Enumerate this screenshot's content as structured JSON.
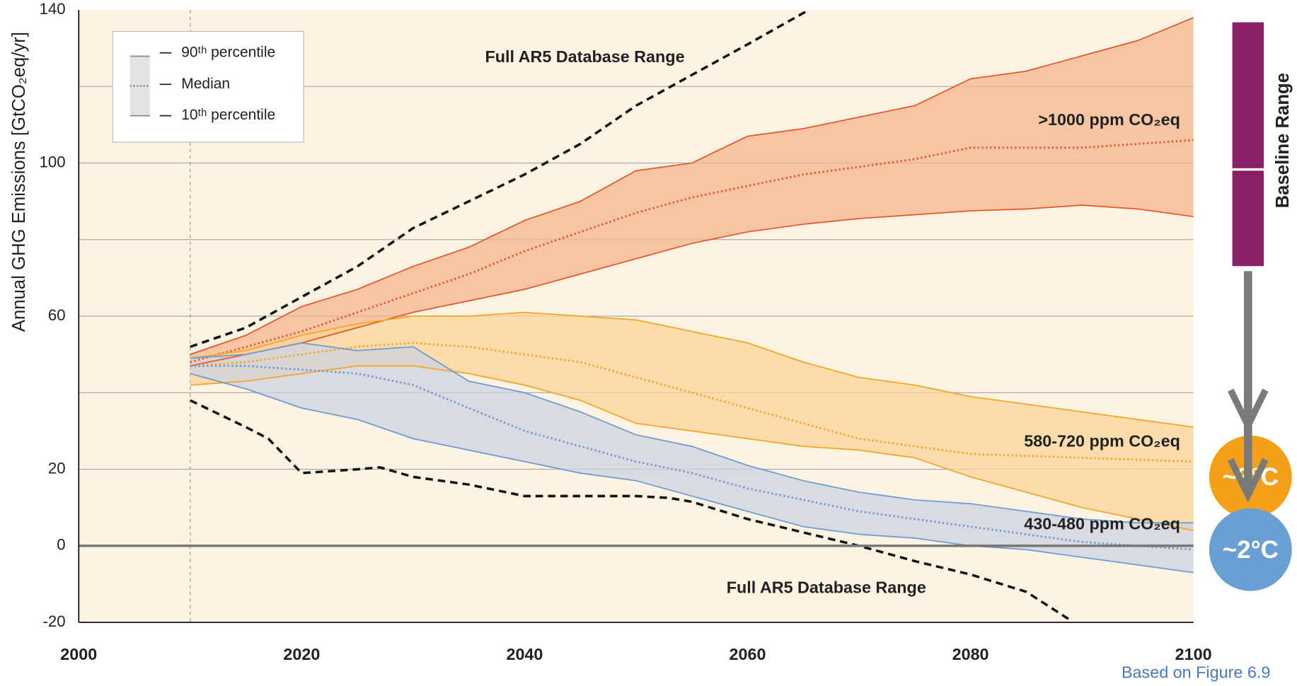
{
  "chart_data": {
    "type": "band-line",
    "y_label": "Annual GHG Emissions [GtCO₂eq/yr]",
    "xlim": [
      2000,
      2100
    ],
    "ylim": [
      -20,
      140
    ],
    "xticks": [
      2000,
      2020,
      2040,
      2060,
      2080,
      2100
    ],
    "yticks": [
      -20,
      0,
      20,
      60,
      100,
      140
    ],
    "minor_grid": [
      40,
      80,
      120
    ],
    "reference_x": 2010,
    "legend": {
      "items": [
        "90ᵗʰ percentile",
        "Median",
        "10ᵗʰ percentile"
      ],
      "position": "upper left"
    },
    "x": [
      2010,
      2015,
      2020,
      2025,
      2030,
      2035,
      2040,
      2045,
      2050,
      2055,
      2060,
      2065,
      2070,
      2075,
      2080,
      2085,
      2090,
      2095,
      2100
    ],
    "scenarios": [
      {
        "name": ">1000 ppm CO₂eq",
        "color": "#e8562a",
        "band_color": "#f3b58e",
        "p90": [
          50,
          55,
          62.5,
          67,
          73,
          78,
          85,
          90,
          98,
          100,
          107,
          109,
          112,
          115,
          122,
          124,
          128,
          132,
          138
        ],
        "median": [
          48,
          52,
          56,
          61,
          66,
          71,
          77,
          82,
          87,
          91,
          94,
          97,
          99,
          101,
          104,
          104,
          104,
          105,
          106
        ],
        "p10": [
          47,
          50,
          53,
          57,
          61,
          64,
          67,
          71,
          75,
          79,
          82,
          84,
          85.5,
          86.5,
          87.5,
          88,
          89,
          88,
          86
        ]
      },
      {
        "name": "580-720 ppm CO₂eq",
        "color": "#f5a623",
        "band_color": "#fbd49a",
        "p90": [
          49,
          51,
          55,
          58,
          60,
          60,
          61,
          60,
          59,
          56,
          53,
          48,
          44,
          42,
          39,
          37,
          35,
          33,
          31
        ],
        "median": [
          47,
          48,
          50,
          52,
          53,
          52,
          50,
          48,
          44,
          40,
          36,
          32,
          28,
          26,
          24,
          23.5,
          23,
          22.5,
          22
        ],
        "p10": [
          42,
          43,
          45,
          47,
          47,
          45,
          42,
          38,
          32,
          30,
          28,
          26,
          25,
          23,
          18,
          14,
          10,
          7,
          4
        ]
      },
      {
        "name": "430-480 ppm CO₂eq",
        "color": "#6b9bd2",
        "band_color": "#cdd3e2",
        "p90": [
          49,
          50,
          53,
          51,
          52,
          43,
          40,
          35,
          29,
          26,
          21,
          17,
          14,
          12,
          11,
          9,
          7,
          6,
          6
        ],
        "median": [
          47,
          47,
          46,
          45,
          42,
          36,
          30,
          26,
          22,
          19,
          15,
          12,
          9,
          7,
          5,
          3,
          1,
          0,
          -1
        ],
        "p10": [
          45,
          41,
          36,
          33,
          28,
          25,
          22,
          19,
          17,
          13,
          9,
          5,
          3,
          2,
          0,
          -1,
          -3,
          -5,
          -7
        ]
      }
    ],
    "database_range": {
      "labels": [
        "Full AR5 Database Range",
        "Full AR5 Database Range"
      ],
      "color": "#111111",
      "upper": {
        "x": [
          2010,
          2015,
          2020,
          2025,
          2030,
          2035,
          2040,
          2045,
          2050,
          2055,
          2060,
          2065.5
        ],
        "values": [
          52,
          57,
          65,
          73,
          83,
          90,
          97,
          105,
          115,
          123,
          131,
          140
        ]
      },
      "lower": {
        "x": [
          2010,
          2015,
          2017,
          2020,
          2025,
          2027,
          2030,
          2035,
          2040,
          2045,
          2050,
          2053,
          2055,
          2060,
          2065,
          2070,
          2075,
          2080,
          2085,
          2089
        ],
        "values": [
          38,
          31,
          28,
          19,
          20,
          20.5,
          18,
          16,
          13,
          13,
          13,
          12.5,
          11.5,
          7,
          3.5,
          0,
          -4,
          -7.5,
          -12,
          -19.5
        ]
      }
    },
    "side": {
      "baseline": "Baseline Range",
      "baseline_color": "#8b1f66",
      "t3": "~3°C",
      "t3_color": "#f5a01a",
      "t2": "~2°C",
      "t2_color": "#6a9fd4"
    },
    "source": "Based on Figure 6.9"
  }
}
